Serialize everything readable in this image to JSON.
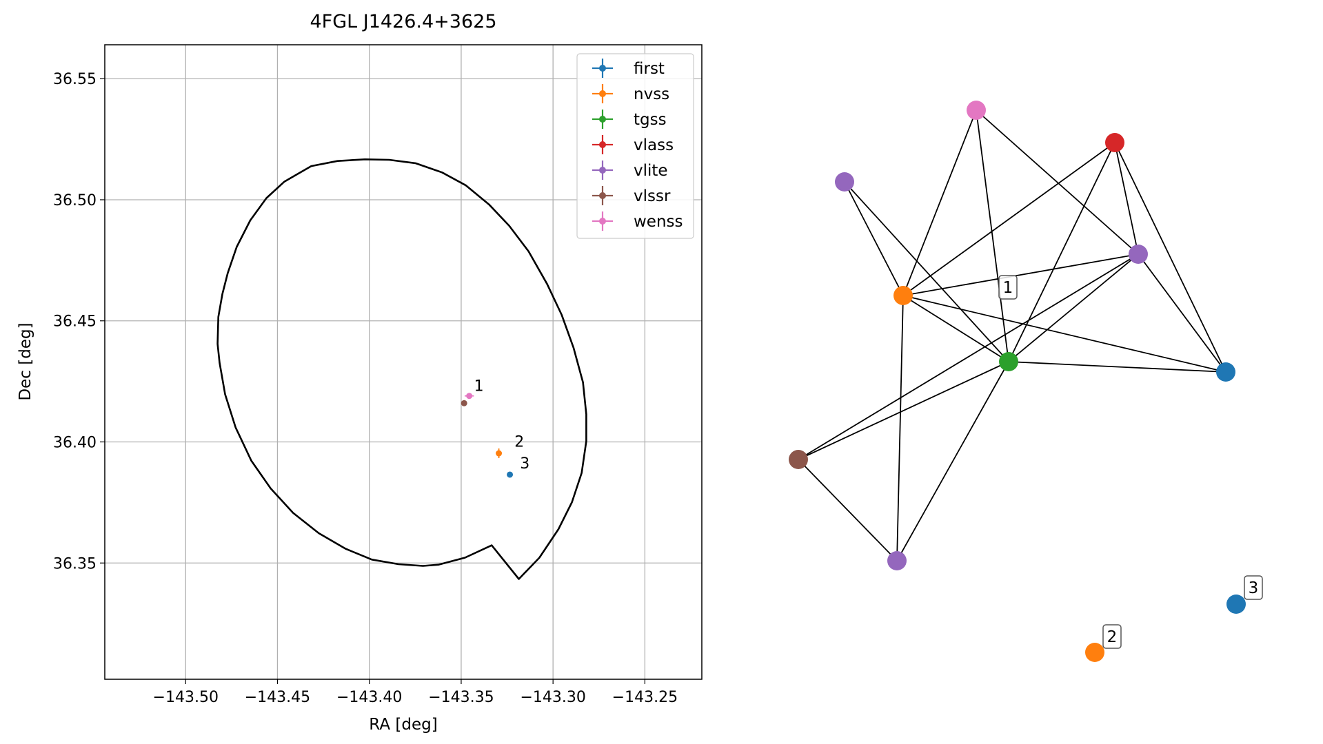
{
  "chart_data": [
    {
      "type": "scatter",
      "title": "4FGL J1426.4+3625",
      "xlabel": "RA [deg]",
      "ylabel": "Dec [deg]",
      "xlim": [
        -143.544,
        -143.219
      ],
      "ylim": [
        36.302,
        36.564
      ],
      "xticks": [
        -143.5,
        -143.45,
        -143.4,
        -143.35,
        -143.3,
        -143.25
      ],
      "xtick_labels": [
        "−143.50",
        "−143.45",
        "−143.40",
        "−143.35",
        "−143.30",
        "−143.25"
      ],
      "yticks": [
        36.35,
        36.4,
        36.45,
        36.5,
        36.55
      ],
      "ytick_labels": [
        "36.35",
        "36.40",
        "36.45",
        "36.50",
        "36.55"
      ],
      "grid": true,
      "legend_position": "top-right",
      "ellipse": {
        "color": "#000000",
        "points": [
          [
            -143.3892,
            36.5165
          ],
          [
            -143.3749,
            36.5151
          ],
          [
            -143.3604,
            36.5113
          ],
          [
            -143.3474,
            36.5059
          ],
          [
            -143.3349,
            36.4981
          ],
          [
            -143.3238,
            36.4892
          ],
          [
            -143.3133,
            36.4787
          ],
          [
            -143.3032,
            36.4652
          ],
          [
            -143.2953,
            36.4525
          ],
          [
            -143.2888,
            36.4388
          ],
          [
            -143.2837,
            36.4246
          ],
          [
            -143.2819,
            36.4114
          ],
          [
            -143.2819,
            36.4003
          ],
          [
            -143.2844,
            36.3872
          ],
          [
            -143.2897,
            36.3751
          ],
          [
            -143.2971,
            36.3639
          ],
          [
            -143.3074,
            36.3522
          ],
          [
            -143.3186,
            36.3434
          ],
          [
            -143.3334,
            36.3573
          ],
          [
            -143.3479,
            36.3522
          ],
          [
            -143.3624,
            36.3493
          ],
          [
            -143.3708,
            36.3488
          ],
          [
            -143.3841,
            36.3495
          ],
          [
            -143.3986,
            36.3514
          ],
          [
            -143.413,
            36.3559
          ],
          [
            -143.4275,
            36.3623
          ],
          [
            -143.4415,
            36.3707
          ],
          [
            -143.4537,
            36.3808
          ],
          [
            -143.4642,
            36.3922
          ],
          [
            -143.4728,
            36.406
          ],
          [
            -143.4785,
            36.4197
          ],
          [
            -143.4815,
            36.4327
          ],
          [
            -143.4826,
            36.4405
          ],
          [
            -143.4822,
            36.4516
          ],
          [
            -143.48,
            36.461
          ],
          [
            -143.4771,
            36.4697
          ],
          [
            -143.4722,
            36.4805
          ],
          [
            -143.4648,
            36.4915
          ],
          [
            -143.456,
            36.5007
          ],
          [
            -143.4462,
            36.5075
          ],
          [
            -143.4316,
            36.5139
          ],
          [
            -143.4173,
            36.516
          ],
          [
            -143.4024,
            36.5167
          ]
        ]
      },
      "series": [
        {
          "name": "first",
          "color": "#1f77b4",
          "points": [
            {
              "x": -143.3235,
              "y": 36.3865,
              "xerr": 0.0005,
              "yerr": 0.0005
            }
          ]
        },
        {
          "name": "nvss",
          "color": "#ff7f0e",
          "points": [
            {
              "x": -143.3295,
              "y": 36.3953,
              "xerr": 0.0015,
              "yerr": 0.002
            }
          ]
        },
        {
          "name": "tgss",
          "color": "#2ca02c",
          "points": []
        },
        {
          "name": "vlass",
          "color": "#d62728",
          "points": []
        },
        {
          "name": "vlite",
          "color": "#9467bd",
          "points": []
        },
        {
          "name": "vlssr",
          "color": "#8c564b",
          "points": [
            {
              "x": -143.3484,
              "y": 36.416,
              "xerr": 0.0008,
              "yerr": 0.0008
            }
          ]
        },
        {
          "name": "wenss",
          "color": "#e377c2",
          "points": [
            {
              "x": -143.3456,
              "y": 36.419,
              "xerr": 0.0025,
              "yerr": 0.001
            }
          ]
        }
      ],
      "annotations": [
        {
          "text": "1",
          "x": -143.343,
          "y": 36.421
        },
        {
          "text": "2",
          "x": -143.321,
          "y": 36.398
        },
        {
          "text": "3",
          "x": -143.318,
          "y": 36.389
        }
      ]
    },
    {
      "type": "network",
      "nodes": [
        {
          "id": "n1",
          "color": "#e377c2"
        },
        {
          "id": "n2",
          "color": "#d62728"
        },
        {
          "id": "n3",
          "color": "#9467bd"
        },
        {
          "id": "n4",
          "color": "#9467bd"
        },
        {
          "id": "n5",
          "color": "#ff7f0e"
        },
        {
          "id": "n6",
          "color": "#2ca02c"
        },
        {
          "id": "n7",
          "color": "#1f77b4"
        },
        {
          "id": "n8",
          "color": "#8c564b"
        },
        {
          "id": "n9",
          "color": "#9467bd"
        },
        {
          "id": "n10",
          "color": "#ff7f0e"
        },
        {
          "id": "n11",
          "color": "#1f77b4"
        }
      ],
      "edges": [
        [
          "n1",
          "n5"
        ],
        [
          "n1",
          "n6"
        ],
        [
          "n1",
          "n4"
        ],
        [
          "n2",
          "n5"
        ],
        [
          "n2",
          "n6"
        ],
        [
          "n2",
          "n4"
        ],
        [
          "n2",
          "n7"
        ],
        [
          "n3",
          "n5"
        ],
        [
          "n3",
          "n6"
        ],
        [
          "n4",
          "n5"
        ],
        [
          "n4",
          "n6"
        ],
        [
          "n4",
          "n7"
        ],
        [
          "n4",
          "n8"
        ],
        [
          "n5",
          "n6"
        ],
        [
          "n5",
          "n7"
        ],
        [
          "n5",
          "n9"
        ],
        [
          "n6",
          "n7"
        ],
        [
          "n6",
          "n8"
        ],
        [
          "n6",
          "n9"
        ],
        [
          "n8",
          "n9"
        ]
      ],
      "labels": [
        {
          "text": "1",
          "near": "n6"
        },
        {
          "text": "2",
          "near": "n10"
        },
        {
          "text": "3",
          "near": "n11"
        }
      ]
    }
  ]
}
